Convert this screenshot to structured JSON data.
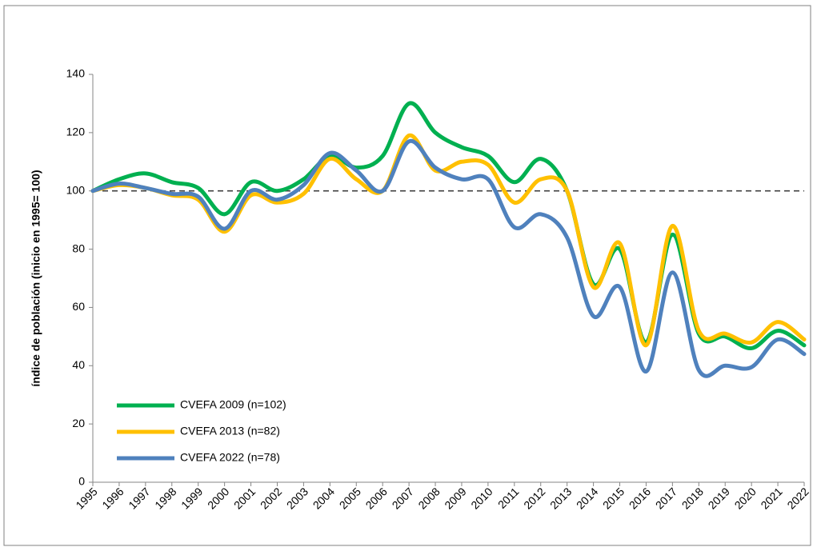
{
  "chart_data": {
    "type": "line",
    "y_label": "índice de población (inicio en 1995= 100)",
    "categories": [
      "1995",
      "1996",
      "1997",
      "1998",
      "1999",
      "2000",
      "2001",
      "2002",
      "2003",
      "2004",
      "2005",
      "2006",
      "2007",
      "2008",
      "2009",
      "2010",
      "2011",
      "2012",
      "2013",
      "2014",
      "2015",
      "2016",
      "2017",
      "2018",
      "2019",
      "2020",
      "2021",
      "2022"
    ],
    "series": [
      {
        "name": "CVEFA 2009 (n=102)",
        "color": "#00b050",
        "values": [
          100,
          104,
          106,
          103,
          101,
          92,
          103,
          100,
          104,
          112,
          108,
          112,
          130,
          120,
          115,
          112,
          103,
          111,
          100,
          68,
          80,
          48,
          85,
          51,
          50,
          46,
          52,
          47
        ]
      },
      {
        "name": "CVEFA 2013 (n=82)",
        "color": "#ffc000",
        "values": [
          100,
          102,
          101,
          98.5,
          97,
          86,
          98.5,
          96,
          99,
          111,
          104,
          100,
          119,
          107,
          110,
          109,
          96,
          104,
          100,
          67,
          82,
          47,
          88,
          52,
          51,
          48,
          55,
          49
        ]
      },
      {
        "name": "CVEFA 2022 (n=78)",
        "color": "#4f81bd",
        "values": [
          100,
          102.5,
          101,
          99,
          98,
          87,
          100,
          97,
          102,
          113,
          107,
          100,
          117,
          108,
          104,
          104,
          87.5,
          92,
          84,
          57,
          67,
          38,
          72,
          38.5,
          40,
          39.5,
          49,
          44
        ]
      }
    ],
    "reference_line": 100,
    "ylim": [
      0,
      140
    ],
    "yticks": [
      0,
      20,
      40,
      60,
      80,
      100,
      120,
      140
    ],
    "grid": false
  }
}
